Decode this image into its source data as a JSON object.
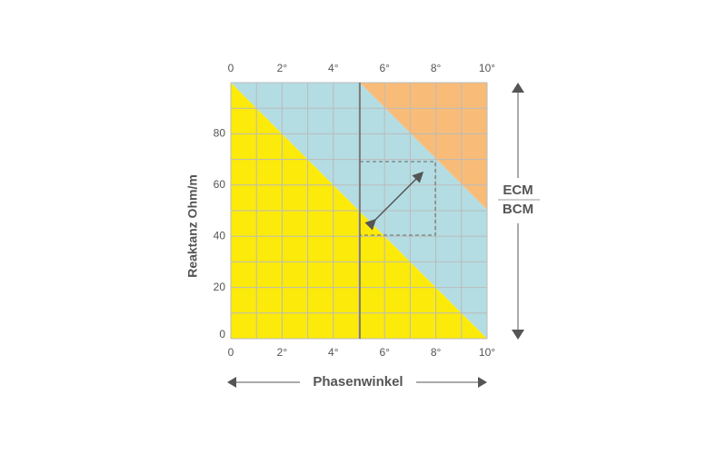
{
  "x_axis": {
    "title": "Phasenwinkel",
    "top_ticks": [
      "0",
      "2°",
      "4°",
      "6°",
      "8°",
      "10°"
    ],
    "bottom_ticks": [
      "0",
      "2°",
      "4°",
      "6°",
      "8°",
      "10°"
    ]
  },
  "y_axis": {
    "title": "Reaktanz Ohm/m",
    "ticks": [
      "0",
      "20",
      "40",
      "60",
      "80"
    ]
  },
  "side_labels": {
    "upper": "ECM",
    "lower": "BCM"
  }
}
